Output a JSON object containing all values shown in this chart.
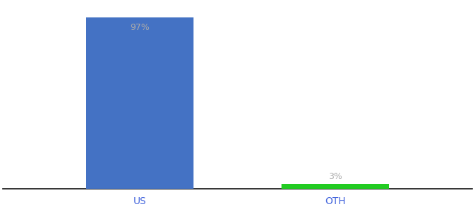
{
  "categories": [
    "US",
    "OTH"
  ],
  "values": [
    97,
    3
  ],
  "bar_colors": [
    "#4472c4",
    "#22cc22"
  ],
  "label_texts": [
    "97%",
    "3%"
  ],
  "label_color": "#aaaaaa",
  "background_color": "#ffffff",
  "axis_line_color": "#111111",
  "xlabel_color": "#4466dd",
  "ylim": [
    0,
    105
  ],
  "bar_width": 0.55,
  "figsize": [
    6.8,
    3.0
  ],
  "dpi": 100,
  "label_fontsize": 9,
  "xlabel_fontsize": 10
}
